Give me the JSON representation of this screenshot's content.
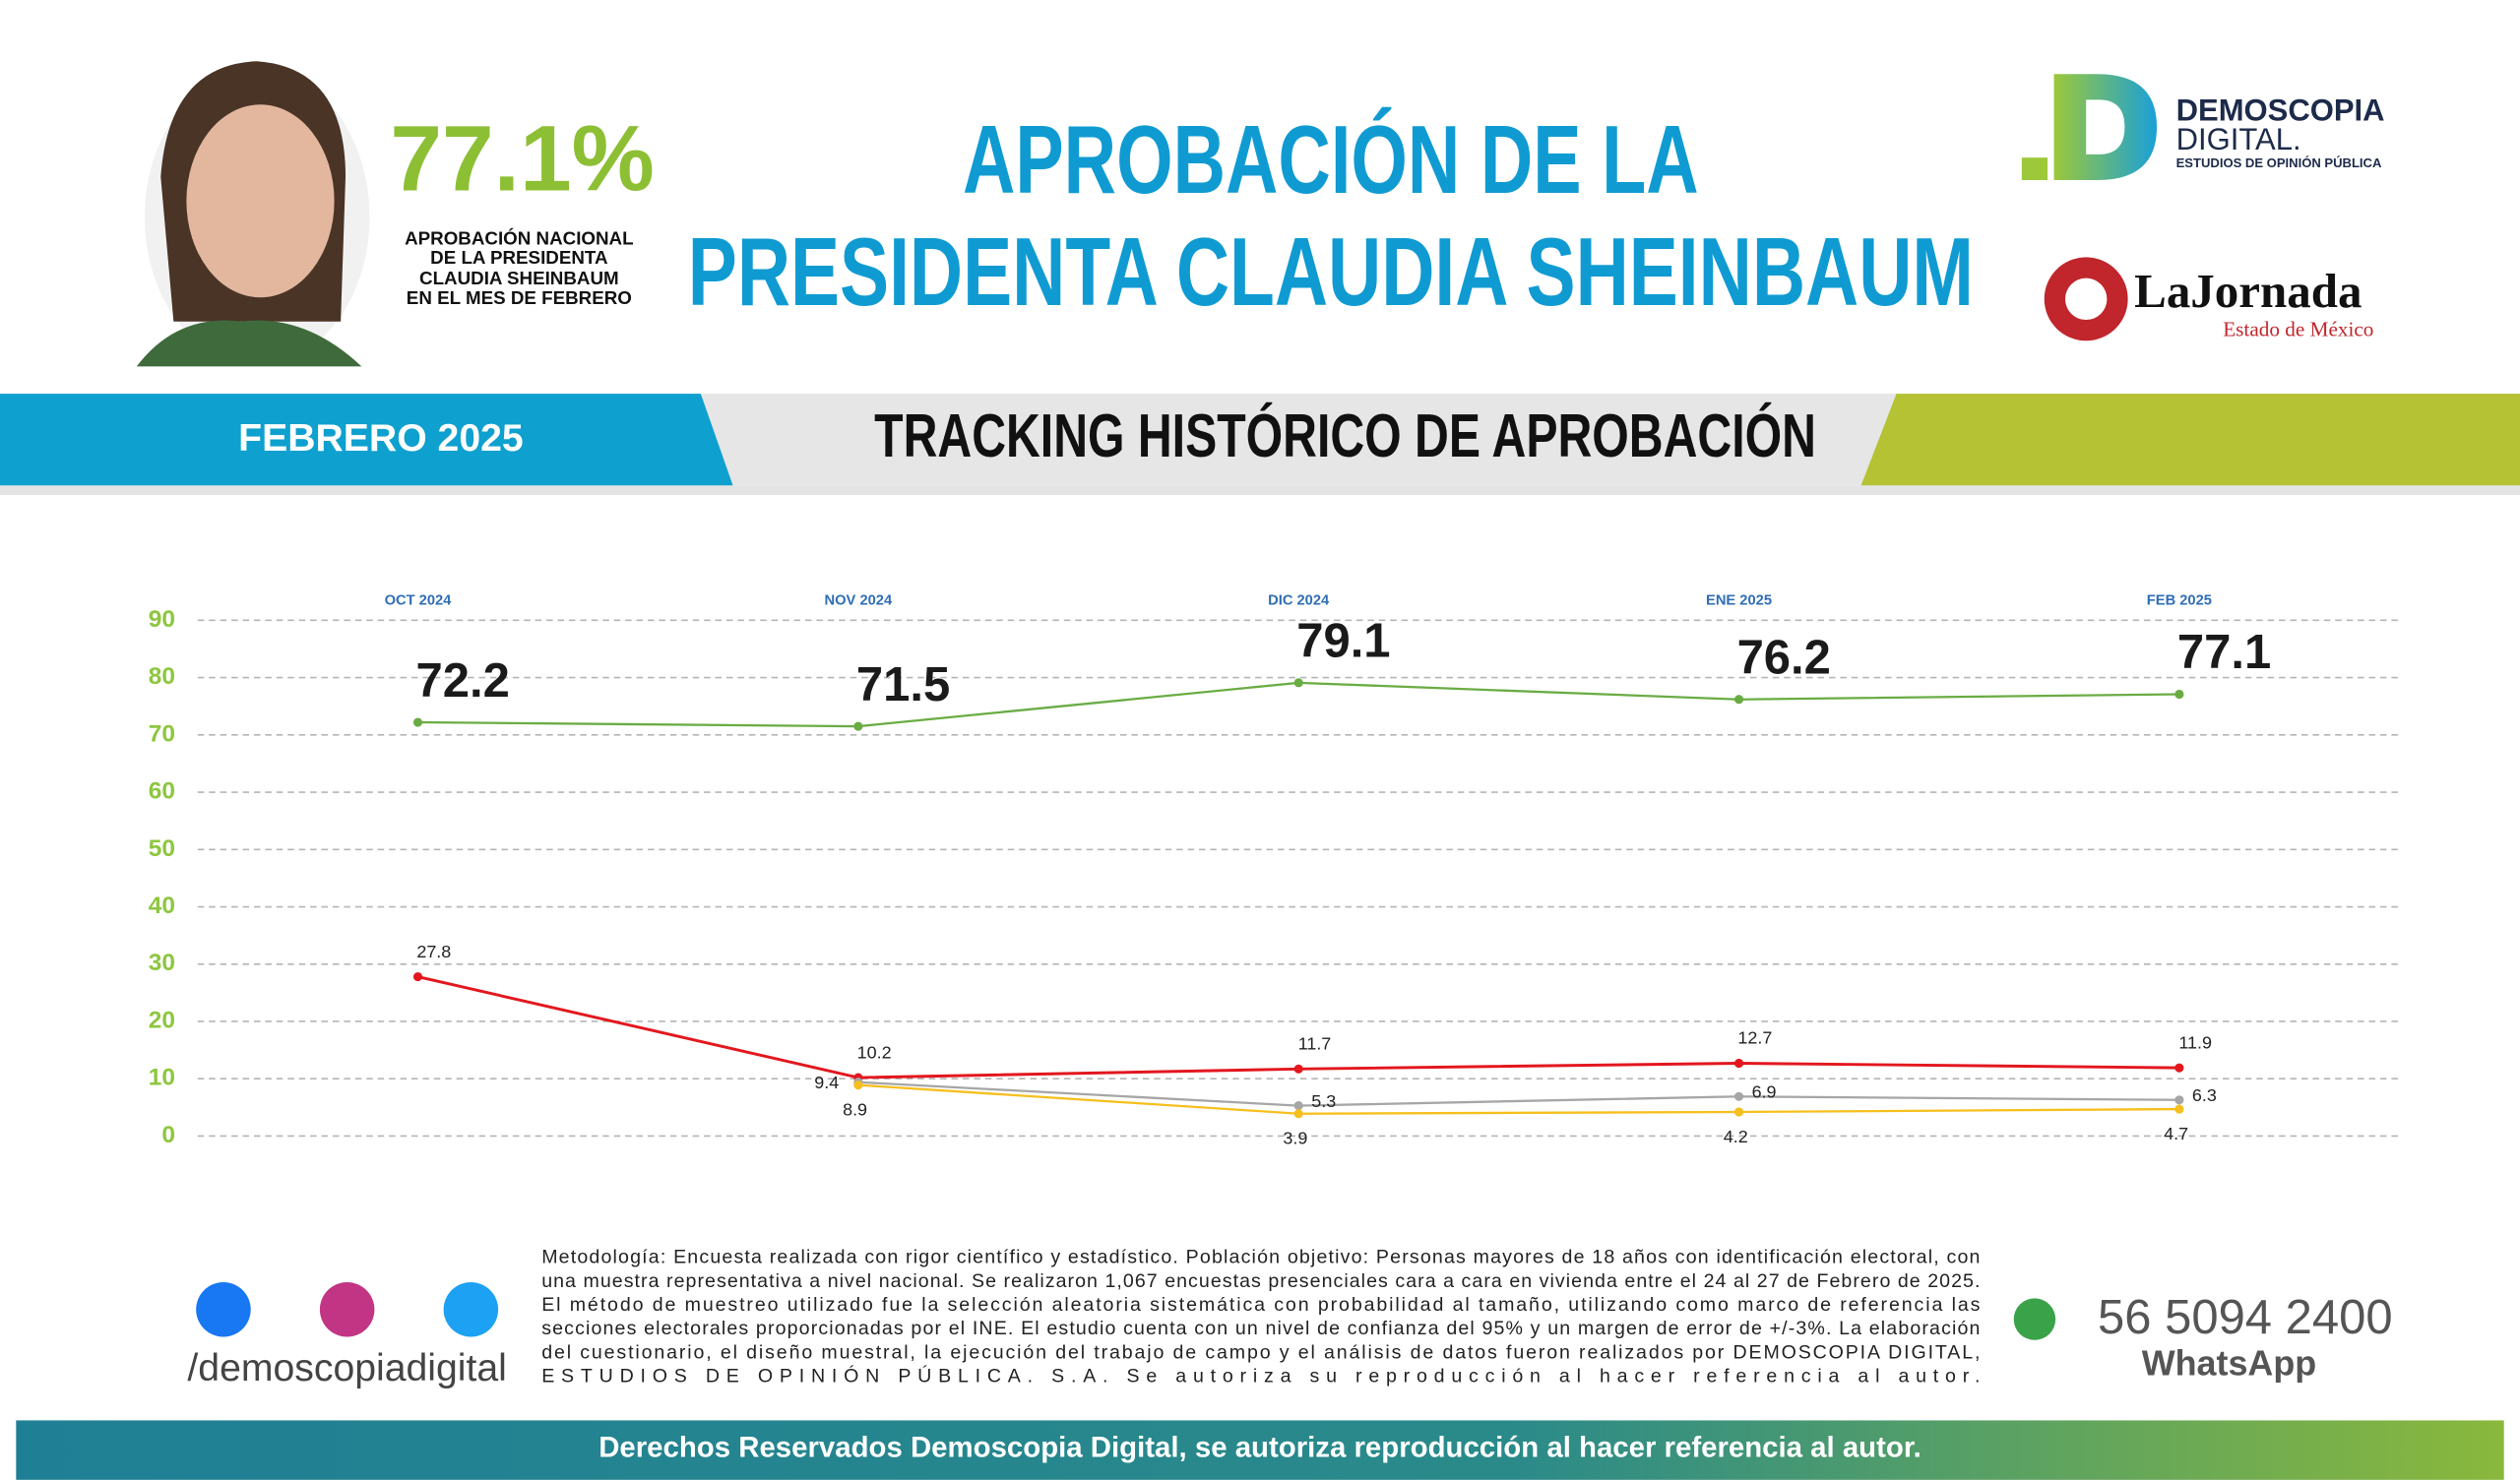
{
  "header": {
    "headline_value": "77.1%",
    "headline_caption": [
      "APROBACIÓN NACIONAL",
      "DE LA PRESIDENTA",
      "CLAUDIA SHEINBAUM",
      "EN EL MES DE FEBRERO"
    ],
    "title": [
      "APROBACIÓN DE LA",
      "PRESIDENTA CLAUDIA SHEINBAUM"
    ],
    "logo": {
      "name": [
        "DEMOSCOPIA",
        "DIGITAL."
      ],
      "tagline": "ESTUDIOS DE OPINIÓN PÚBLICA"
    },
    "partner": {
      "name": "LaJornada",
      "region": "Estado de México"
    }
  },
  "band": {
    "date": "FEBRERO 2025",
    "heading": "TRACKING HISTÓRICO DE APROBACIÓN"
  },
  "chart_data": {
    "type": "line",
    "categories": [
      "OCT 2024",
      "NOV 2024",
      "DIC 2024",
      "ENE 2025",
      "FEB 2025"
    ],
    "series": [
      {
        "color": "#6aac44",
        "values": [
          72.2,
          71.5,
          79.1,
          76.2,
          77.1
        ]
      },
      {
        "color": "#e3171e",
        "values": [
          27.8,
          10.2,
          11.7,
          12.7,
          11.9
        ]
      },
      {
        "color": "#a6a6a6",
        "values": [
          null,
          9.4,
          5.3,
          6.9,
          6.3
        ]
      },
      {
        "color": "#f6bf1c",
        "values": [
          null,
          8.9,
          3.9,
          4.2,
          4.7
        ]
      }
    ],
    "ylim": [
      0,
      90
    ],
    "yticks": [
      0,
      10,
      20,
      30,
      40,
      50,
      60,
      70,
      80,
      90
    ],
    "grid": true
  },
  "methodology": [
    "Metodología: Encuesta realizada con rigor científico y estadístico. Población objetivo: Personas mayores de 18 años con identificación electoral, con",
    "una muestra representativa a nivel nacional. Se realizaron 1,067 encuestas presenciales cara a cara en vivienda entre el 24 al 27 de Febrero de 2025.",
    "El método de muestreo utilizado fue la selección aleatoria sistemática con probabilidad al tamaño, utilizando como marco de referencia las",
    "secciones electorales proporcionadas por el INE. El estudio cuenta con un nivel de confianza del 95% y un margen de error de +/-3%. La elaboración",
    "del cuestionario, el diseño muestral, la ejecución del trabajo de campo y el análisis de datos fueron realizados por DEMOSCOPIA DIGITAL,",
    "ESTUDIOS DE OPINIÓN PÚBLICA. S.A. Se autoriza su reproducción al hacer referencia al autor."
  ],
  "social": {
    "handle": "/demoscopiadigital",
    "phone": "56 5094 2400",
    "channel": "WhatsApp"
  },
  "footer": "Derechos Reservados Demoscopia Digital, se autoriza reproducción al hacer referencia al autor."
}
